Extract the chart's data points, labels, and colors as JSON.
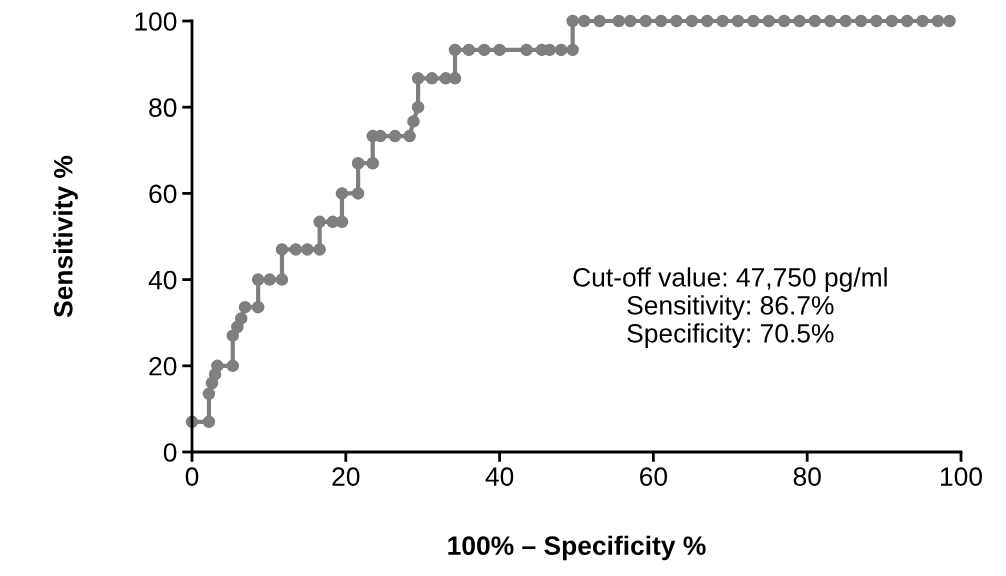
{
  "chart_data": {
    "type": "line",
    "xlabel": "100% – Specificity %",
    "ylabel": "Sensitivity %",
    "xlim": [
      0,
      100
    ],
    "ylim": [
      0,
      100
    ],
    "xticks": [
      0,
      20,
      40,
      60,
      80,
      100
    ],
    "yticks": [
      0,
      20,
      40,
      60,
      80,
      100
    ],
    "grid": false,
    "marker": "circle",
    "line_style": "solid",
    "series": [
      {
        "color": "#7f7f7f",
        "x": [
          0,
          2.2,
          2.2,
          2.6,
          3.0,
          3.3,
          5.3,
          5.3,
          5.9,
          6.4,
          6.9,
          8.6,
          8.6,
          10.1,
          11.7,
          11.7,
          13.5,
          15,
          16.6,
          16.6,
          18.3,
          19.5,
          19.5,
          21.6,
          21.6,
          23.5,
          23.5,
          24.5,
          26.4,
          28.3,
          28.8,
          29.4,
          29.4,
          31.2,
          33,
          34.2,
          34.2,
          36,
          38,
          40,
          43.5,
          45.5,
          46.5,
          48,
          49.5,
          49.5,
          51,
          53,
          55.5,
          57,
          59,
          61,
          63,
          65,
          67,
          69,
          71,
          73,
          75,
          77,
          79,
          81,
          83,
          85,
          87,
          89,
          91,
          93,
          95,
          97,
          98.5
        ],
        "values": [
          7,
          7,
          13.5,
          16,
          18,
          20,
          20,
          27,
          29,
          31,
          33.6,
          33.6,
          40,
          40,
          40,
          47,
          47,
          47,
          47,
          53.4,
          53.4,
          53.4,
          60,
          60,
          67,
          67,
          73.3,
          73.3,
          73.3,
          73.3,
          76.7,
          80,
          86.7,
          86.7,
          86.7,
          86.7,
          93.3,
          93.3,
          93.3,
          93.3,
          93.3,
          93.3,
          93.3,
          93.3,
          93.3,
          100,
          100,
          100,
          100,
          100,
          100,
          100,
          100,
          100,
          100,
          100,
          100,
          100,
          100,
          100,
          100,
          100,
          100,
          100,
          100,
          100,
          100,
          100,
          100,
          100,
          100
        ]
      }
    ],
    "annotations": [
      "Cut-off value: 47,750 pg/ml",
      "Sensitivity: 86.7%",
      "Specificity: 70.5%"
    ]
  }
}
